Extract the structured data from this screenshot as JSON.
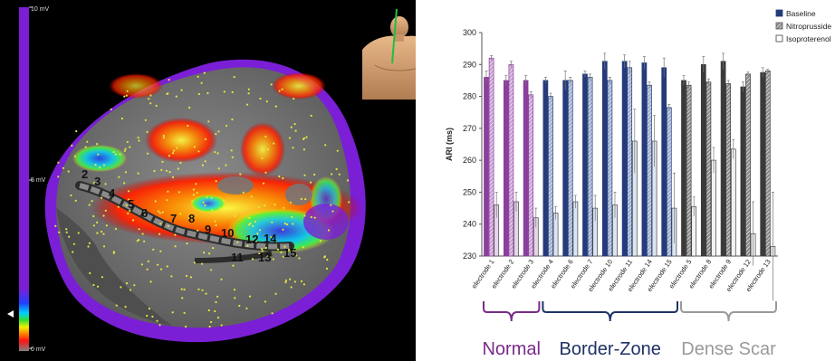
{
  "map_panel": {
    "scale_labels": {
      "top": "10 mV",
      "mid": "5 mV",
      "bottom": "0 mV"
    },
    "electrode_numbers": [
      "2",
      "3",
      "4",
      "5",
      "6",
      "7",
      "8",
      "9",
      "10",
      "11",
      "12",
      "13",
      "14",
      "15"
    ]
  },
  "chart_data": {
    "type": "bar",
    "title": "",
    "xlabel": "",
    "ylabel": "ARI (ms)",
    "ylim": [
      230,
      300
    ],
    "yticks": [
      230,
      240,
      250,
      260,
      270,
      280,
      290,
      300
    ],
    "grid": false,
    "legend_position": "top-right",
    "categories": [
      "electrode 1",
      "electrode 2",
      "electrode 3",
      "electrode 4",
      "electrode 6",
      "electrode 7",
      "electrode 10",
      "electrode 11",
      "electrode 14",
      "electrode 15",
      "electrode 5",
      "electrode 8",
      "electrode 9",
      "electrode 12",
      "electrode 13"
    ],
    "series": [
      {
        "name": "Baseline",
        "values": [
          286,
          285,
          285,
          285,
          285,
          287,
          291,
          291,
          290.5,
          289,
          285,
          290,
          291,
          283,
          287.5
        ],
        "errors": [
          2,
          1.5,
          1.5,
          1,
          3,
          1,
          2.5,
          2,
          2,
          3,
          1.5,
          2.5,
          2.5,
          1.5,
          1.5
        ]
      },
      {
        "name": "Nitroprusside",
        "values": [
          292,
          290,
          280.5,
          280,
          285,
          286,
          285,
          289,
          283.5,
          276.5,
          283.5,
          284.5,
          284,
          287,
          288
        ],
        "errors": [
          0.8,
          1,
          1,
          1,
          1,
          1,
          1,
          2,
          1,
          1,
          1,
          1,
          1,
          0.6,
          0.5
        ]
      },
      {
        "name": "Isoproterenol",
        "values": [
          246,
          247,
          242,
          243.5,
          247,
          245,
          246,
          266,
          266,
          245,
          245.5,
          260,
          263.5,
          237,
          233
        ],
        "errors": [
          4,
          3,
          3,
          2,
          2,
          4,
          4,
          10,
          8,
          11,
          3,
          4,
          3,
          10,
          17
        ]
      }
    ],
    "groups": [
      {
        "label": "Normal",
        "start": 0,
        "end": 2,
        "color": "#7a2a8a"
      },
      {
        "label": "Border-Zone",
        "start": 3,
        "end": 9,
        "color": "#1f3264"
      },
      {
        "label": "Dense Scar",
        "start": 10,
        "end": 14,
        "color": "#9a9a9a"
      }
    ],
    "colors": {
      "Normal": {
        "Baseline": "#8b3f9c",
        "Nitroprusside": "#c79bd3",
        "Isoproterenol": "#e6d5ec"
      },
      "Border-Zone": {
        "Baseline": "#243a7a",
        "Nitroprusside": "#9aaccc",
        "Isoproterenol": "#dbe6f3"
      },
      "Dense Scar": {
        "Baseline": "#3a3a3a",
        "Nitroprusside": "#8a8a8a",
        "Isoproterenol": "#f2f2f2"
      }
    }
  }
}
